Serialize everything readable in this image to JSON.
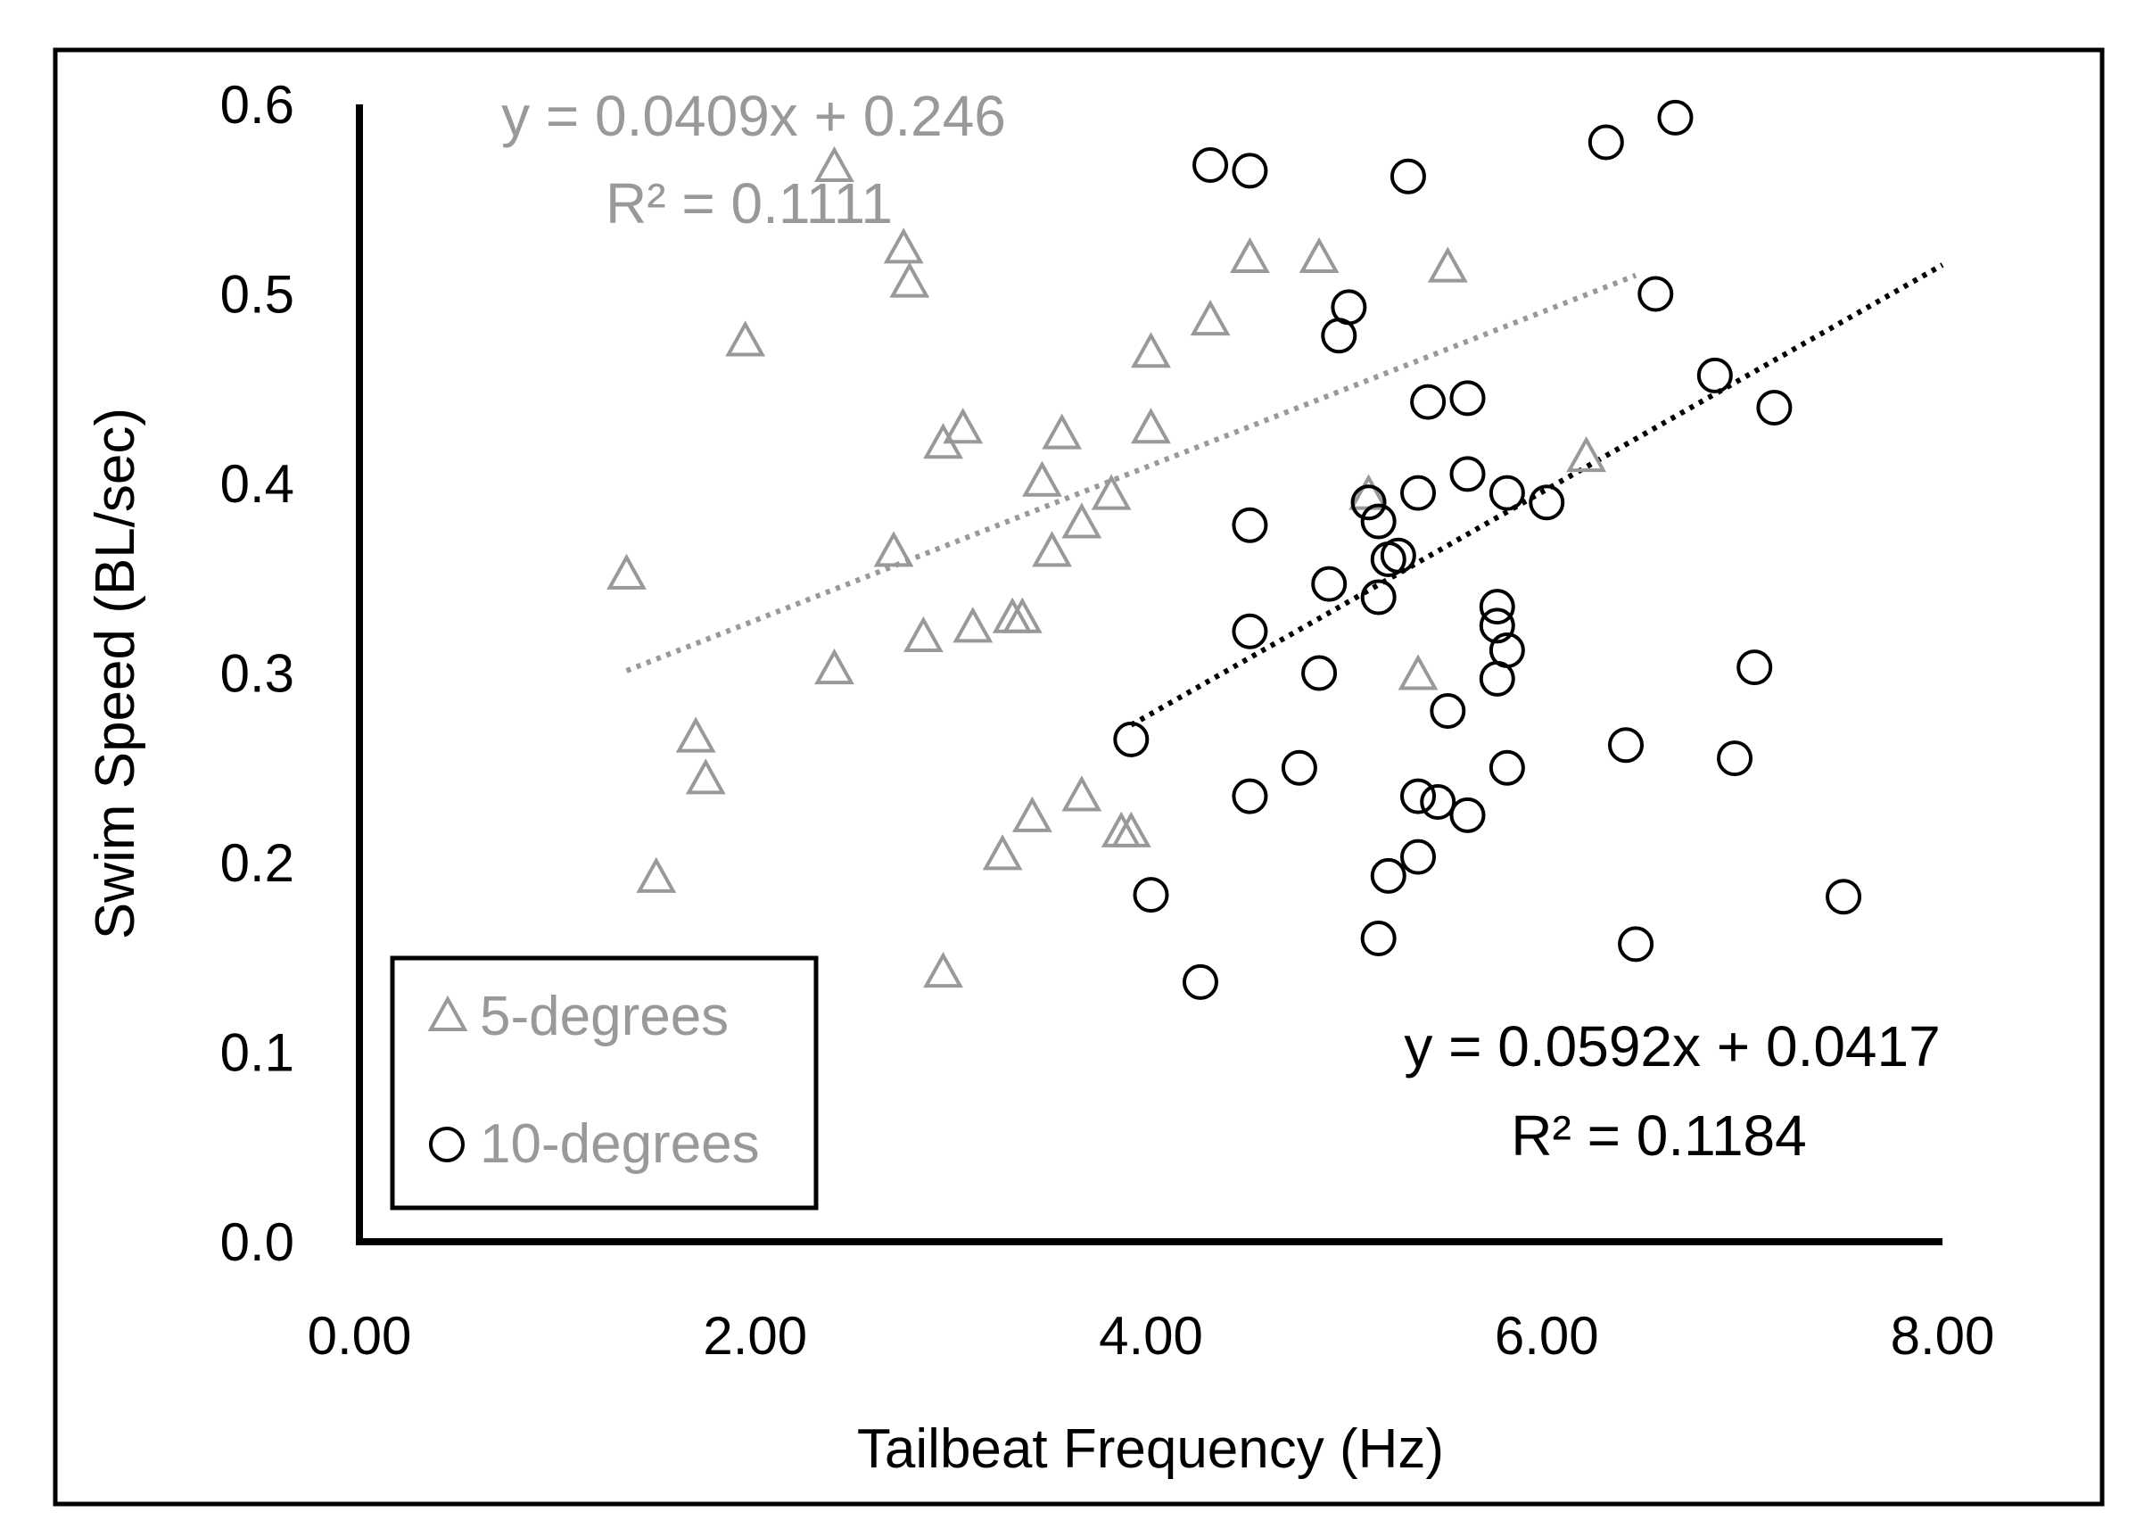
{
  "colors": {
    "series_5deg": "#999999",
    "series_10deg": "#000000",
    "axis": "#000000",
    "background": "#ffffff"
  },
  "chart_data": {
    "type": "scatter",
    "title": "",
    "xlabel": "Tailbeat  Frequency (Hz)",
    "ylabel": "Swim Speed (BL/sec)",
    "xlim": [
      0,
      8
    ],
    "ylim": [
      0,
      0.6
    ],
    "x_ticks": [
      "0.00",
      "2.00",
      "4.00",
      "6.00",
      "8.00"
    ],
    "y_ticks": [
      "0.0",
      "0.1",
      "0.2",
      "0.3",
      "0.4",
      "0.5",
      "0.6"
    ],
    "grid": false,
    "legend": {
      "position": "bottom-left"
    },
    "series": [
      {
        "name": "5-degrees",
        "marker": "triangle",
        "color": "#999999",
        "trendline": {
          "slope": 0.0409,
          "intercept": 0.246,
          "x_range": [
            1.35,
            6.45
          ],
          "equation": "y = 0.0409x + 0.246",
          "r2": "R² = 0.1111"
        },
        "points": [
          [
            2.4,
            0.568
          ],
          [
            2.75,
            0.525
          ],
          [
            2.78,
            0.507
          ],
          [
            1.95,
            0.476
          ],
          [
            4.5,
            0.52
          ],
          [
            4.85,
            0.52
          ],
          [
            5.5,
            0.515
          ],
          [
            4.3,
            0.487
          ],
          [
            4.0,
            0.47
          ],
          [
            4.0,
            0.43
          ],
          [
            3.55,
            0.427
          ],
          [
            3.05,
            0.43
          ],
          [
            2.95,
            0.422
          ],
          [
            3.45,
            0.402
          ],
          [
            3.8,
            0.395
          ],
          [
            3.65,
            0.38
          ],
          [
            3.5,
            0.365
          ],
          [
            2.7,
            0.365
          ],
          [
            1.35,
            0.353
          ],
          [
            3.35,
            0.33
          ],
          [
            3.3,
            0.33
          ],
          [
            3.1,
            0.325
          ],
          [
            2.85,
            0.32
          ],
          [
            2.4,
            0.303
          ],
          [
            5.35,
            0.3
          ],
          [
            1.7,
            0.267
          ],
          [
            1.75,
            0.245
          ],
          [
            3.65,
            0.236
          ],
          [
            3.4,
            0.225
          ],
          [
            3.85,
            0.217
          ],
          [
            3.9,
            0.217
          ],
          [
            3.25,
            0.205
          ],
          [
            1.5,
            0.193
          ],
          [
            2.95,
            0.143
          ],
          [
            6.2,
            0.415
          ],
          [
            5.1,
            0.395
          ]
        ]
      },
      {
        "name": "10-degrees",
        "marker": "circle",
        "color": "#000000",
        "trendline": {
          "slope": 0.0592,
          "intercept": 0.0417,
          "x_range": [
            3.9,
            8.0
          ],
          "equation": "y = 0.0592x + 0.0417",
          "r2": "R² = 0.1184"
        },
        "points": [
          [
            4.3,
            0.568
          ],
          [
            4.5,
            0.565
          ],
          [
            5.3,
            0.562
          ],
          [
            6.3,
            0.58
          ],
          [
            6.65,
            0.593
          ],
          [
            6.55,
            0.5
          ],
          [
            5.0,
            0.493
          ],
          [
            4.95,
            0.478
          ],
          [
            5.4,
            0.443
          ],
          [
            5.6,
            0.445
          ],
          [
            6.85,
            0.457
          ],
          [
            7.15,
            0.44
          ],
          [
            5.6,
            0.405
          ],
          [
            5.35,
            0.395
          ],
          [
            5.8,
            0.395
          ],
          [
            6.0,
            0.39
          ],
          [
            5.1,
            0.39
          ],
          [
            5.15,
            0.38
          ],
          [
            4.5,
            0.378
          ],
          [
            5.2,
            0.36
          ],
          [
            5.25,
            0.362
          ],
          [
            4.9,
            0.347
          ],
          [
            5.15,
            0.34
          ],
          [
            5.75,
            0.335
          ],
          [
            5.75,
            0.325
          ],
          [
            5.8,
            0.312
          ],
          [
            4.5,
            0.322
          ],
          [
            4.85,
            0.3
          ],
          [
            5.75,
            0.297
          ],
          [
            7.05,
            0.303
          ],
          [
            5.5,
            0.28
          ],
          [
            3.9,
            0.265
          ],
          [
            6.4,
            0.262
          ],
          [
            6.95,
            0.255
          ],
          [
            4.75,
            0.25
          ],
          [
            5.8,
            0.25
          ],
          [
            4.5,
            0.235
          ],
          [
            5.35,
            0.235
          ],
          [
            5.45,
            0.232
          ],
          [
            5.6,
            0.225
          ],
          [
            5.35,
            0.203
          ],
          [
            5.2,
            0.193
          ],
          [
            4.0,
            0.183
          ],
          [
            7.5,
            0.182
          ],
          [
            5.15,
            0.16
          ],
          [
            6.45,
            0.157
          ],
          [
            4.25,
            0.137
          ]
        ]
      }
    ]
  }
}
